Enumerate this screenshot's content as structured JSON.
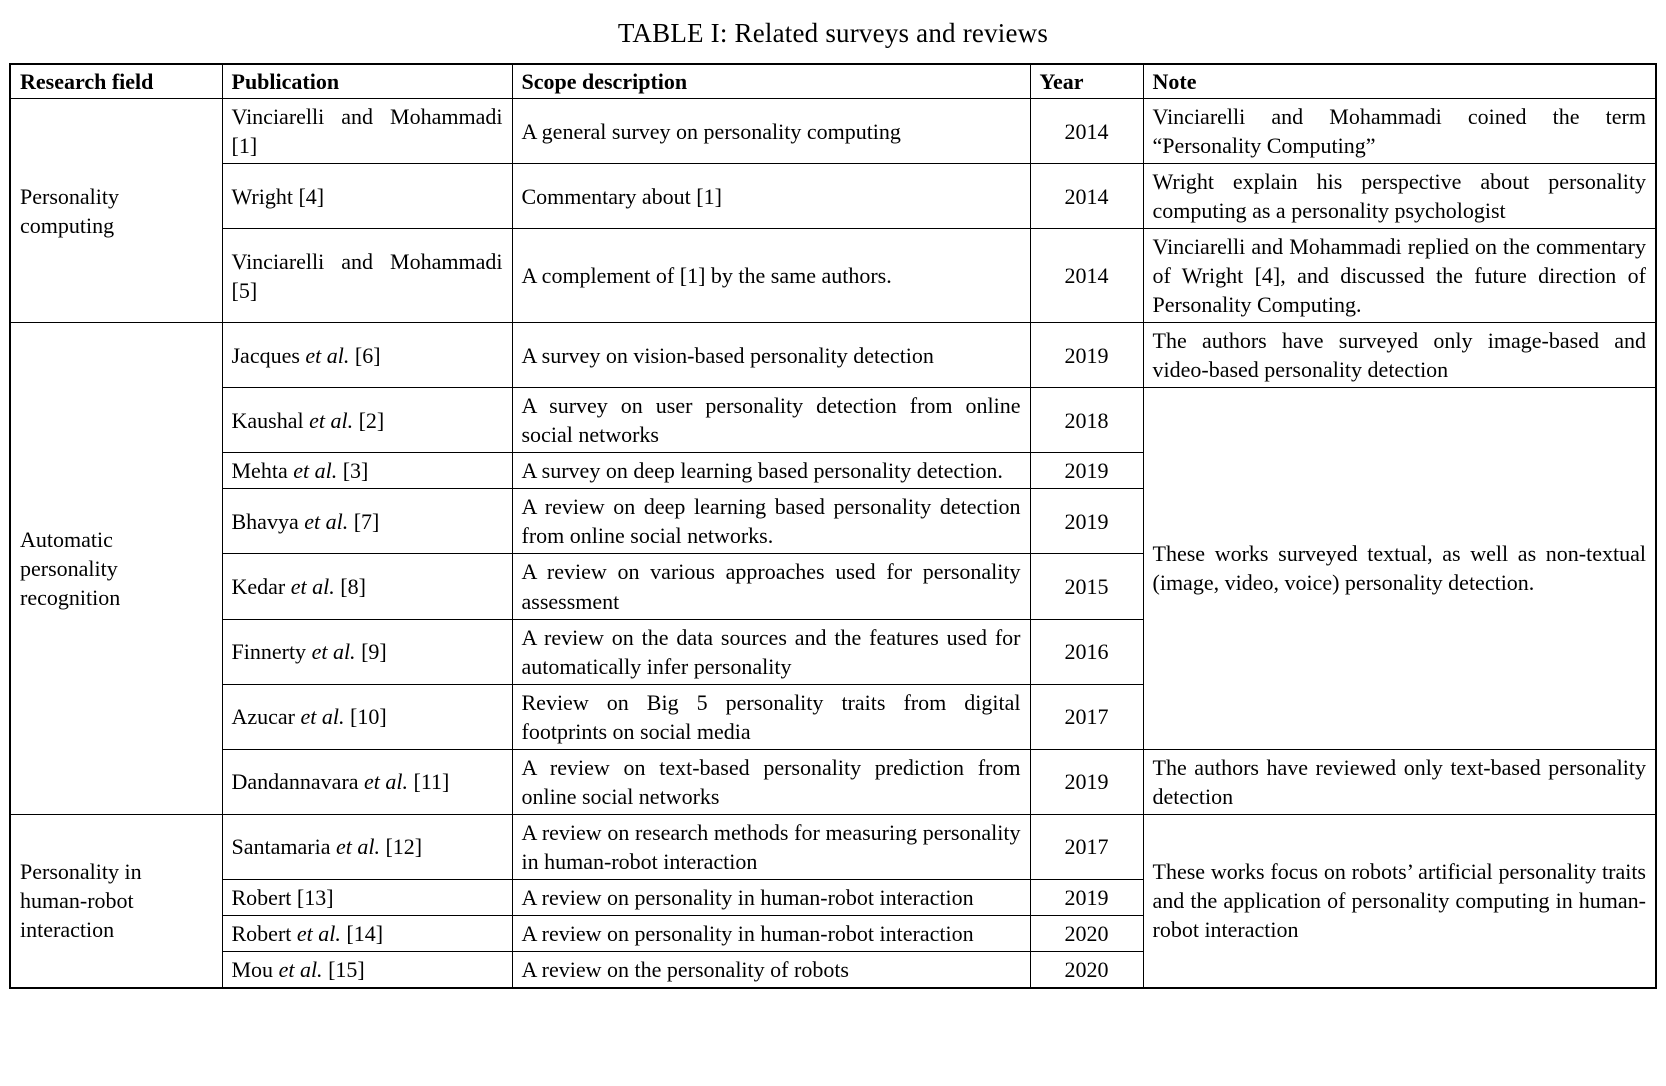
{
  "title": "TABLE I: Related surveys and reviews",
  "columns": [
    "Research field",
    "Publication",
    "Scope description",
    "Year",
    "Note"
  ],
  "field_groups": [
    "Personality computing",
    "Automatic personality recognition",
    "Personality in human-robot interaction"
  ],
  "merged_notes": [
    "These works surveyed textual, as well as non-textual (image, video, voice) personality detection.",
    "These works focus on robots’ artificial personality traits and the application of personality computing in human-robot interaction"
  ],
  "rows": [
    {
      "pub_name": "Vinciarelli and Mohammadi",
      "pub_etal": "",
      "pub_ref": "[1]",
      "scope": "A general survey on personality computing",
      "year": "2014",
      "note": "Vinciarelli and Mohammadi coined the term “Personality Computing”"
    },
    {
      "pub_name": "Wright",
      "pub_etal": "",
      "pub_ref": "[4]",
      "scope": "Commentary about [1]",
      "year": "2014",
      "note": "Wright explain his perspective about personality computing as a personality psychologist"
    },
    {
      "pub_name": "Vinciarelli and Mohammadi",
      "pub_etal": "",
      "pub_ref": "[5]",
      "scope": "A complement of [1] by the same authors.",
      "year": "2014",
      "note": "Vinciarelli and Mohammadi replied on the commentary of Wright [4], and discussed the future direction of Personality Computing."
    },
    {
      "pub_name": "Jacques",
      "pub_etal": "et al.",
      "pub_ref": "[6]",
      "scope": "A survey on vision-based personality detection",
      "year": "2019",
      "note": "The authors have surveyed only image-based and video-based personality detection"
    },
    {
      "pub_name": "Kaushal",
      "pub_etal": "et al.",
      "pub_ref": "[2]",
      "scope": "A survey on user personality detection from online social networks",
      "year": "2018"
    },
    {
      "pub_name": "Mehta",
      "pub_etal": "et al.",
      "pub_ref": "[3]",
      "scope": "A survey on deep learning based personality detection.",
      "year": "2019"
    },
    {
      "pub_name": "Bhavya",
      "pub_etal": "et al.",
      "pub_ref": "[7]",
      "scope": "A review on deep learning based personality detection from online social networks.",
      "year": "2019"
    },
    {
      "pub_name": "Kedar",
      "pub_etal": "et al.",
      "pub_ref": "[8]",
      "scope": "A review on various approaches used for personality assessment",
      "year": "2015"
    },
    {
      "pub_name": "Finnerty",
      "pub_etal": "et al.",
      "pub_ref": "[9]",
      "scope": "A review on the data sources and the features used for automatically infer personality",
      "year": "2016"
    },
    {
      "pub_name": "Azucar",
      "pub_etal": "et al.",
      "pub_ref": "[10]",
      "scope": "Review on Big 5 personality traits from digital footprints on social media",
      "year": "2017"
    },
    {
      "pub_name": "Dandannavara",
      "pub_etal": "et al.",
      "pub_ref": "[11]",
      "scope": "A review on text-based personality prediction from online social networks",
      "year": "2019",
      "note": "The authors have reviewed only text-based personality detection"
    },
    {
      "pub_name": "Santamaria",
      "pub_etal": "et al.",
      "pub_ref": "[12]",
      "scope": "A review on research methods for measuring personality in human-robot interaction",
      "year": "2017"
    },
    {
      "pub_name": "Robert",
      "pub_etal": "",
      "pub_ref": "[13]",
      "scope": "A review on personality in human-robot interaction",
      "year": "2019"
    },
    {
      "pub_name": "Robert",
      "pub_etal": "et al.",
      "pub_ref": "[14]",
      "scope": "A review on personality in human-robot interaction",
      "year": "2020"
    },
    {
      "pub_name": "Mou",
      "pub_etal": "et al.",
      "pub_ref": "[15]",
      "scope": "A review on the personality of robots",
      "year": "2020"
    }
  ]
}
